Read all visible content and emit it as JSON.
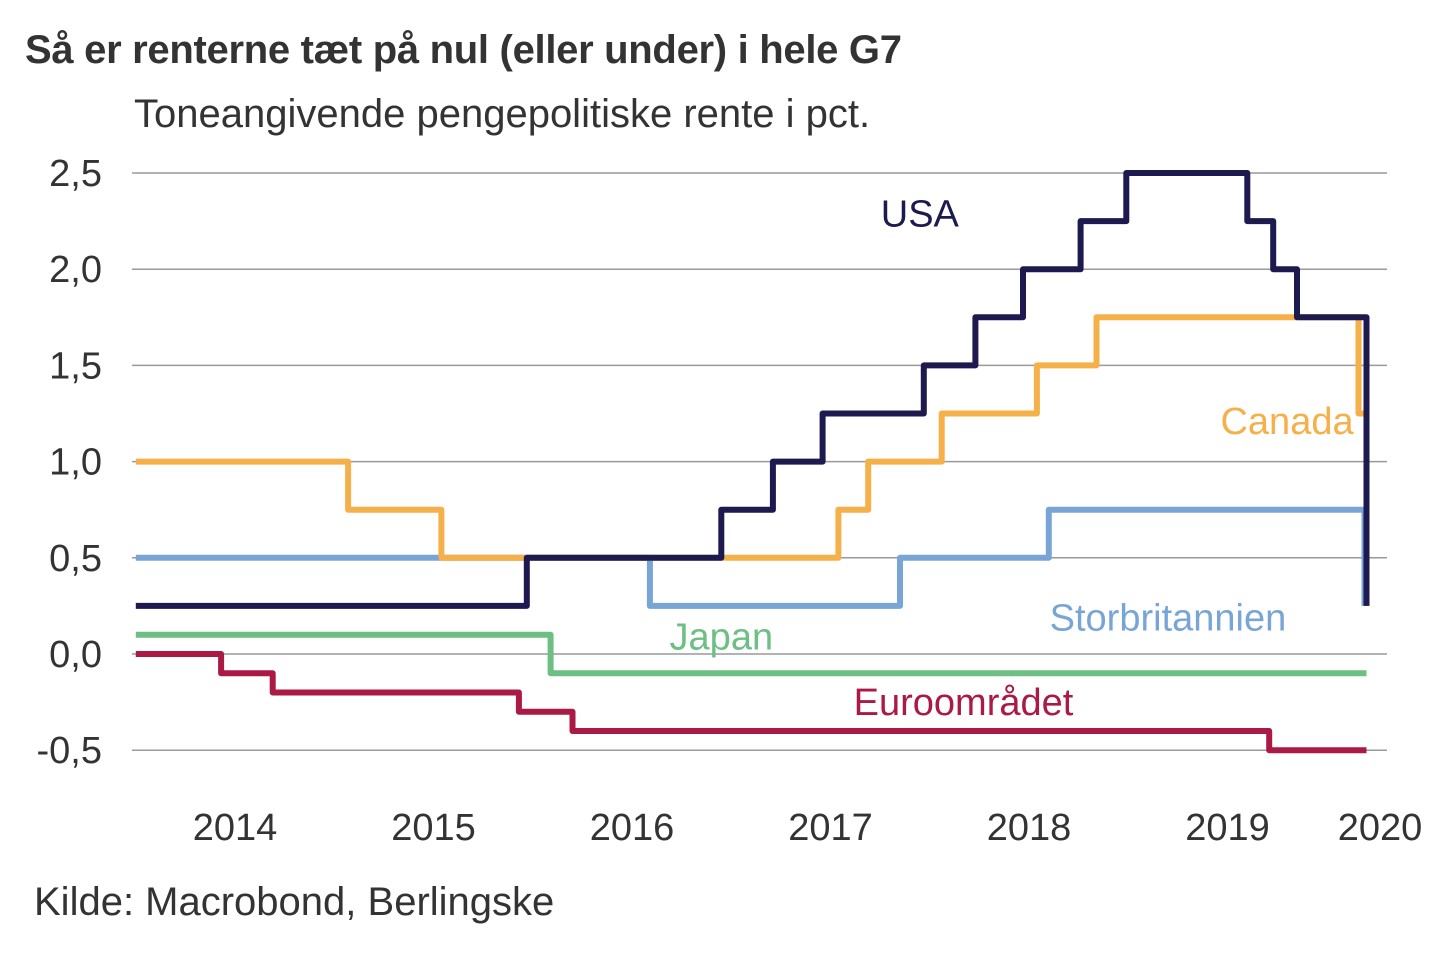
{
  "header": {
    "title": "Så er renterne tæt på nul (eller under) i hele G7",
    "subtitle": "Toneangivende pengepolitiske rente i pct."
  },
  "footer": {
    "source": "Kilde: Macrobond, Berlingske"
  },
  "chart_data": {
    "type": "line",
    "step": true,
    "title": "Så er renterne tæt på nul (eller under) i hele G7",
    "subtitle": "Toneangivende pengepolitiske rente i pct.",
    "xlabel": "",
    "ylabel": "",
    "xlim": [
      2013.5,
      2019.72
    ],
    "ylim": [
      -0.5,
      2.5
    ],
    "yticks": [
      2.5,
      2.0,
      1.5,
      1.0,
      0.5,
      0.0,
      -0.5
    ],
    "ytick_labels": [
      "2,5",
      "2,0",
      "1,5",
      "1,0",
      "0,5",
      "0,0",
      "-0,5"
    ],
    "xticks": [
      2014,
      2015,
      2016,
      2017,
      2018,
      2019,
      2020
    ],
    "xtick_labels": [
      "2014",
      "2015",
      "2016",
      "2017",
      "2018",
      "2019",
      "2020"
    ],
    "grid": true,
    "legend": "inline-labels",
    "series": [
      {
        "name": "USA",
        "color": "#1c1a4f",
        "points": [
          [
            2013.5,
            0.25
          ],
          [
            2015.47,
            0.25
          ],
          [
            2015.47,
            0.5
          ],
          [
            2016.45,
            0.5
          ],
          [
            2016.45,
            0.75
          ],
          [
            2016.71,
            0.75
          ],
          [
            2016.71,
            1.0
          ],
          [
            2016.96,
            1.0
          ],
          [
            2016.96,
            1.25
          ],
          [
            2017.47,
            1.25
          ],
          [
            2017.47,
            1.5
          ],
          [
            2017.73,
            1.5
          ],
          [
            2017.73,
            1.75
          ],
          [
            2017.97,
            1.75
          ],
          [
            2017.97,
            2.0
          ],
          [
            2018.26,
            2.0
          ],
          [
            2018.26,
            2.25
          ],
          [
            2018.49,
            2.25
          ],
          [
            2018.49,
            2.5
          ],
          [
            2019.1,
            2.5
          ],
          [
            2019.1,
            2.25
          ],
          [
            2019.23,
            2.25
          ],
          [
            2019.23,
            2.0
          ],
          [
            2019.35,
            2.0
          ],
          [
            2019.35,
            1.75
          ],
          [
            2019.55,
            1.75
          ],
          [
            2019.7,
            1.75
          ],
          [
            2019.7,
            0.25
          ]
        ]
      },
      {
        "name": "Canada",
        "color": "#f5b04a",
        "points": [
          [
            2013.5,
            1.0
          ],
          [
            2014.57,
            1.0
          ],
          [
            2014.57,
            0.75
          ],
          [
            2015.04,
            0.75
          ],
          [
            2015.04,
            0.5
          ],
          [
            2017.04,
            0.5
          ],
          [
            2017.04,
            0.75
          ],
          [
            2017.19,
            0.75
          ],
          [
            2017.19,
            1.0
          ],
          [
            2017.56,
            1.0
          ],
          [
            2017.56,
            1.25
          ],
          [
            2018.04,
            1.25
          ],
          [
            2018.04,
            1.5
          ],
          [
            2018.34,
            1.5
          ],
          [
            2018.34,
            1.75
          ],
          [
            2019.66,
            1.75
          ],
          [
            2019.66,
            1.25
          ],
          [
            2019.7,
            1.25
          ],
          [
            2019.7,
            0.75
          ]
        ]
      },
      {
        "name": "Storbritannien",
        "color": "#78a5d6",
        "points": [
          [
            2013.5,
            0.5
          ],
          [
            2016.09,
            0.5
          ],
          [
            2016.09,
            0.25
          ],
          [
            2017.35,
            0.25
          ],
          [
            2017.35,
            0.5
          ],
          [
            2018.1,
            0.5
          ],
          [
            2018.1,
            0.75
          ],
          [
            2019.69,
            0.75
          ],
          [
            2019.69,
            0.25
          ]
        ]
      },
      {
        "name": "Japan",
        "color": "#6dbf84",
        "points": [
          [
            2013.5,
            0.1
          ],
          [
            2015.59,
            0.1
          ],
          [
            2015.59,
            -0.1
          ],
          [
            2019.7,
            -0.1
          ]
        ]
      },
      {
        "name": "Euroområdet",
        "color": "#ab1a45",
        "points": [
          [
            2013.5,
            0.0
          ],
          [
            2013.93,
            0.0
          ],
          [
            2013.93,
            -0.1
          ],
          [
            2014.19,
            -0.1
          ],
          [
            2014.19,
            -0.2
          ],
          [
            2015.43,
            -0.2
          ],
          [
            2015.43,
            -0.3
          ],
          [
            2015.7,
            -0.3
          ],
          [
            2015.7,
            -0.4
          ],
          [
            2019.21,
            -0.4
          ],
          [
            2019.21,
            -0.5
          ],
          [
            2019.7,
            -0.5
          ]
        ]
      }
    ],
    "annotations": [
      {
        "text": "USA",
        "series": "USA",
        "x": 2017.45,
        "y": 2.29
      },
      {
        "text": "Canada",
        "series": "Canada",
        "x": 2019.3,
        "y": 1.21
      },
      {
        "text": "Storbritannien",
        "series": "Storbritannien",
        "x": 2018.7,
        "y": 0.19
      },
      {
        "text": "Japan",
        "series": "Japan",
        "x": 2016.45,
        "y": 0.09
      },
      {
        "text": "Euroområdet",
        "series": "Euroområdet",
        "x": 2017.67,
        "y": -0.25
      }
    ]
  }
}
